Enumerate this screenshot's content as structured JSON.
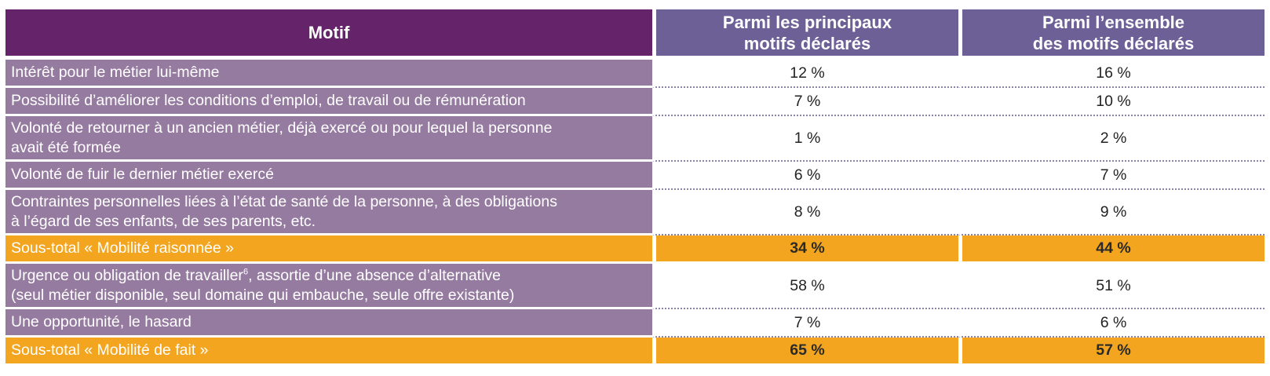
{
  "table": {
    "headers": {
      "motif": "Motif",
      "principaux": [
        "Parmi les principaux",
        "motifs déclarés"
      ],
      "ensemble": [
        "Parmi l’ensemble",
        "des motifs déclarés"
      ]
    },
    "rows": [
      {
        "lines": [
          "Intérêt pour le métier lui-même"
        ],
        "principaux": "12 %",
        "ensemble": "16 %"
      },
      {
        "lines": [
          "Possibilité d’améliorer les conditions d’emploi, de travail ou de rémunération"
        ],
        "principaux": "7 %",
        "ensemble": "10 %"
      },
      {
        "lines": [
          "Volonté de retourner à un ancien métier, déjà exercé ou pour lequel la personne",
          "avait été formée"
        ],
        "principaux": "1 %",
        "ensemble": "2 %"
      },
      {
        "lines": [
          "Volonté de fuir le dernier métier exercé"
        ],
        "principaux": "6 %",
        "ensemble": "7 %"
      },
      {
        "lines": [
          "Contraintes personnelles liées à l’état de santé de la personne, à des obligations",
          "à l’égard de ses enfants, de ses parents, etc."
        ],
        "principaux": "8 %",
        "ensemble": "9 %"
      },
      {
        "lines": [
          "Sous-total « Mobilité raisonnée »"
        ],
        "principaux": "34 %",
        "ensemble": "44 %"
      },
      {
        "lines": [
          "Urgence ou obligation de travailler",
          "(seul métier disponible, seul domaine qui embauche, seule offre existante)"
        ],
        "footnote": "6",
        "line1_suffix": ", assortie d’une absence d’alternative",
        "principaux": "58 %",
        "ensemble": "51 %"
      },
      {
        "lines": [
          "Une opportunité, le hasard"
        ],
        "principaux": "7 %",
        "ensemble": "6 %"
      },
      {
        "lines": [
          "Sous-total « Mobilité de fait »"
        ],
        "principaux": "65 %",
        "ensemble": "57 %"
      }
    ]
  },
  "colors": {
    "header_motif": "#652369",
    "header_columns": "#6c6097",
    "row_label": "#967ba0",
    "subtotal": "#f3a51f",
    "dotted_divider": "#8d82ad"
  }
}
